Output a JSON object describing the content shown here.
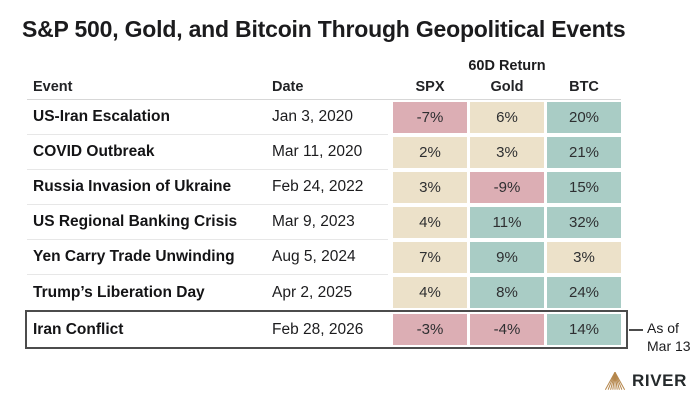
{
  "title": "S&P 500, Gold, and Bitcoin Through Geopolitical Events",
  "table": {
    "group_header": "60D Return",
    "columns": [
      "Event",
      "Date",
      "SPX",
      "Gold",
      "BTC"
    ],
    "rows": [
      {
        "event": "US-Iran Escalation",
        "date": "Jan 3, 2020",
        "highlighted": false,
        "returns": [
          {
            "value": "-7%",
            "tone": "negative"
          },
          {
            "value": "6%",
            "tone": "neutral"
          },
          {
            "value": "20%",
            "tone": "positive"
          }
        ]
      },
      {
        "event": "COVID Outbreak",
        "date": "Mar 11, 2020",
        "highlighted": false,
        "returns": [
          {
            "value": "2%",
            "tone": "neutral"
          },
          {
            "value": "3%",
            "tone": "neutral"
          },
          {
            "value": "21%",
            "tone": "positive"
          }
        ]
      },
      {
        "event": "Russia Invasion of Ukraine",
        "date": "Feb 24, 2022",
        "highlighted": false,
        "returns": [
          {
            "value": "3%",
            "tone": "neutral"
          },
          {
            "value": "-9%",
            "tone": "negative"
          },
          {
            "value": "15%",
            "tone": "positive"
          }
        ]
      },
      {
        "event": "US Regional Banking Crisis",
        "date": "Mar 9, 2023",
        "highlighted": false,
        "returns": [
          {
            "value": "4%",
            "tone": "neutral"
          },
          {
            "value": "11%",
            "tone": "positive"
          },
          {
            "value": "32%",
            "tone": "positive"
          }
        ]
      },
      {
        "event": "Yen Carry Trade Unwinding",
        "date": "Aug 5, 2024",
        "highlighted": false,
        "returns": [
          {
            "value": "7%",
            "tone": "neutral"
          },
          {
            "value": "9%",
            "tone": "positive"
          },
          {
            "value": "3%",
            "tone": "neutral"
          }
        ]
      },
      {
        "event": "Trump’s Liberation Day",
        "date": "Apr 2, 2025",
        "highlighted": false,
        "returns": [
          {
            "value": "4%",
            "tone": "neutral"
          },
          {
            "value": "8%",
            "tone": "positive"
          },
          {
            "value": "24%",
            "tone": "positive"
          }
        ]
      },
      {
        "event": "Iran Conflict",
        "date": "Feb 28, 2026",
        "highlighted": true,
        "returns": [
          {
            "value": "-3%",
            "tone": "negative"
          },
          {
            "value": "-4%",
            "tone": "negative"
          },
          {
            "value": "14%",
            "tone": "positive"
          }
        ]
      }
    ]
  },
  "annotation": {
    "line1": "As of",
    "line2": "Mar 13"
  },
  "logo": {
    "text": "RIVER",
    "icon_color": "#b5874d"
  },
  "colors": {
    "negative": "#dcaeb4",
    "neutral": "#ece1c9",
    "positive": "#a9ccc5"
  }
}
